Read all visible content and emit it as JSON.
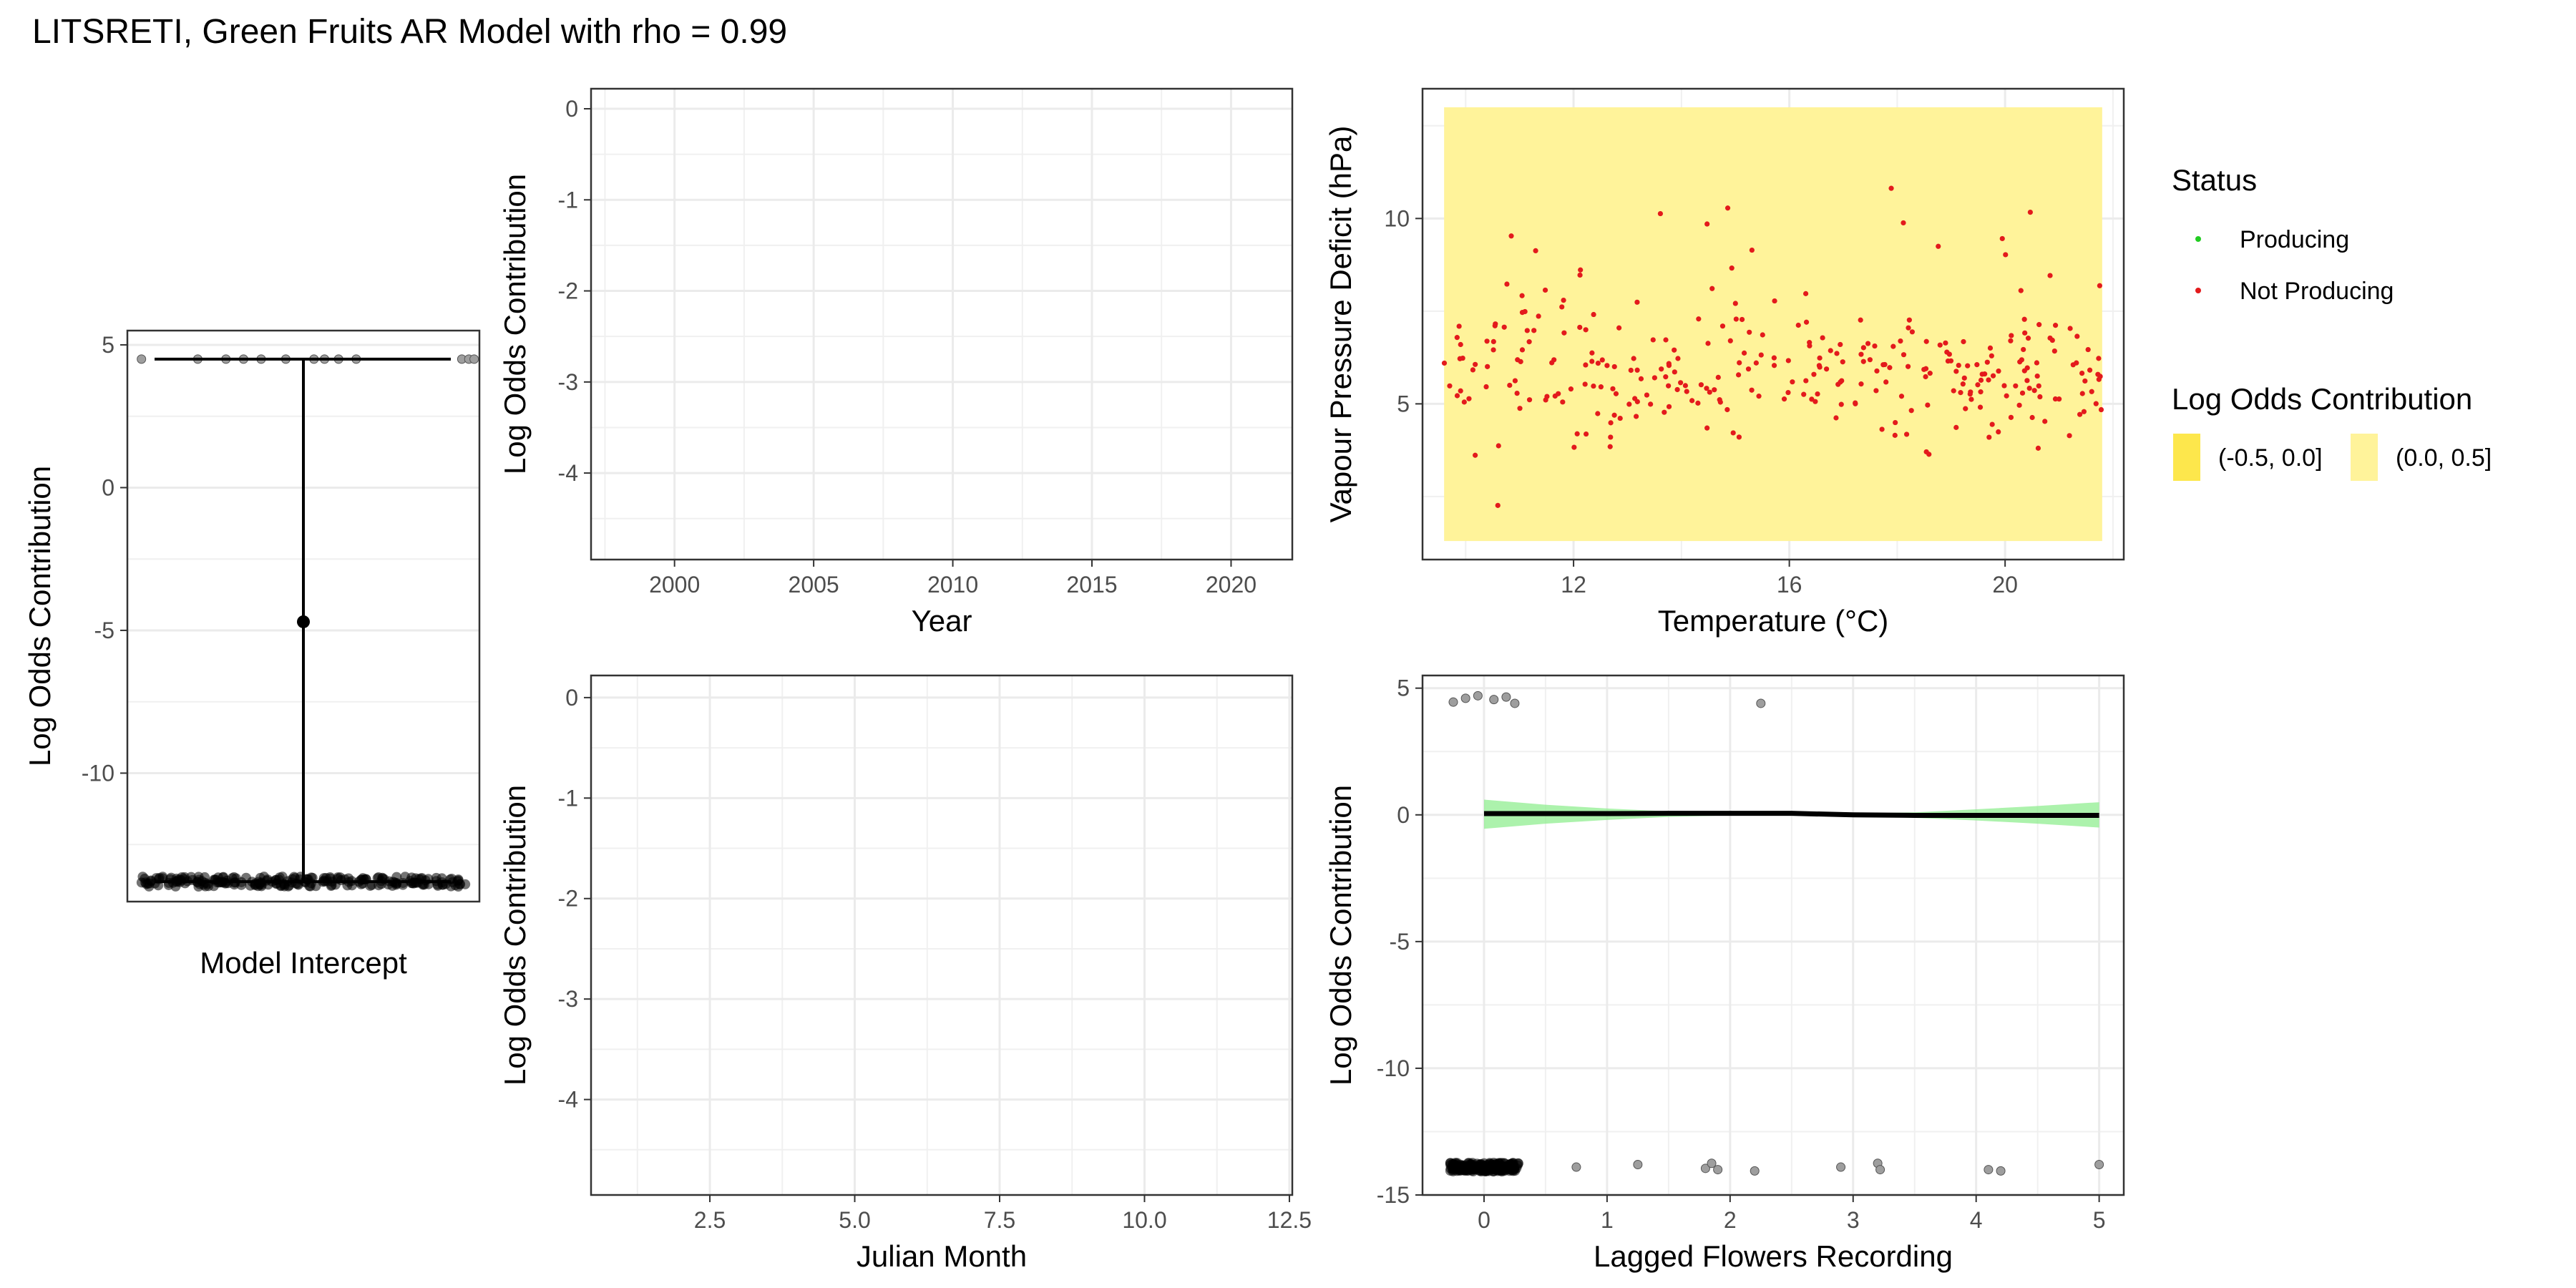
{
  "title": "LITSRETI, Green Fruits AR Model with rho = 0.99",
  "colors": {
    "producing": "#22cc22",
    "not_producing": "#e31a1c",
    "band_neg": "#fde74c",
    "band_pos": "#fff39a",
    "ribbon": "#90ee90",
    "points": "#808080"
  },
  "chart_data": [
    {
      "id": "intercept",
      "type": "scatter",
      "xlabel": "Model Intercept",
      "ylabel": "Log Odds Contribution",
      "ylim": [
        -14.5,
        5.5
      ],
      "yticks": [
        5,
        0,
        -5,
        -10
      ],
      "estimate": -4.7,
      "interval": [
        -13.8,
        4.5
      ],
      "upper_cluster": 4.5,
      "lower_cluster": -13.8
    },
    {
      "id": "year",
      "type": "line",
      "xlabel": "Year",
      "ylabel": "Log Odds Contribution",
      "xlim": [
        1997,
        2022.2
      ],
      "ylim": [
        -4.95,
        0.22
      ],
      "xticks": [
        2000,
        2005,
        2010,
        2015,
        2020
      ],
      "yticks": [
        0,
        -1,
        -2,
        -3,
        -4
      ]
    },
    {
      "id": "temp_vpd",
      "type": "scatter",
      "xlabel": "Temperature (°C)",
      "ylabel": "Vapour Pressure Deficit (hPa)",
      "xlim": [
        9.2,
        22.2
      ],
      "ylim": [
        0.8,
        13.5
      ],
      "xticks": [
        12,
        16,
        20
      ],
      "yticks": [
        5,
        10
      ],
      "band": {
        "x": [
          9.6,
          21.8
        ],
        "y": [
          1.3,
          13.0
        ]
      },
      "points_status": "Not Producing",
      "x_range": [
        9.6,
        21.8
      ],
      "y_range": [
        1.2,
        13.0
      ],
      "n_points": 310
    },
    {
      "id": "month",
      "type": "line",
      "xlabel": "Julian Month",
      "ylabel": "Log Odds Contribution",
      "xlim": [
        0.45,
        12.55
      ],
      "ylim": [
        -4.95,
        0.22
      ],
      "xticks": [
        2.5,
        5.0,
        7.5,
        10.0,
        12.5
      ],
      "xtick_labels": [
        "2.5",
        "5.0",
        "7.5",
        "10.0",
        "12.5"
      ],
      "yticks": [
        0,
        -1,
        -2,
        -3,
        -4
      ]
    },
    {
      "id": "lagged_flowers",
      "type": "line",
      "xlabel": "Lagged Flowers Recording",
      "ylabel": "Log Odds Contribution",
      "xlim": [
        -0.5,
        5.2
      ],
      "ylim": [
        -15,
        5.5
      ],
      "xticks": [
        0,
        1,
        2,
        3,
        4,
        5
      ],
      "yticks": [
        5,
        0,
        -5,
        -10,
        -15
      ],
      "line": {
        "x": [
          0,
          0.5,
          1,
          1.5,
          2,
          2.5,
          3,
          3.5,
          4,
          4.5,
          5
        ],
        "y": [
          0.05,
          0.05,
          0.05,
          0.06,
          0.06,
          0.06,
          0,
          -0.02,
          -0.02,
          -0.02,
          -0.02
        ]
      },
      "ribbon": {
        "x": [
          0,
          0.5,
          1,
          1.5,
          2,
          2.5,
          3,
          3.5,
          4,
          4.5,
          5
        ],
        "lower": [
          -0.55,
          -0.35,
          -0.2,
          -0.08,
          -0.02,
          0.02,
          -0.05,
          -0.12,
          -0.22,
          -0.35,
          -0.5
        ],
        "upper": [
          0.6,
          0.4,
          0.25,
          0.14,
          0.1,
          0.08,
          0.05,
          0.1,
          0.22,
          0.35,
          0.5
        ]
      },
      "scatter": [
        {
          "x": -0.15,
          "y": 4.6
        },
        {
          "x": -0.05,
          "y": 4.7
        },
        {
          "x": 0.08,
          "y": 4.55
        },
        {
          "x": 0.18,
          "y": 4.65
        },
        {
          "x": 0.25,
          "y": 4.4
        },
        {
          "x": -0.25,
          "y": 4.45
        },
        {
          "x": 2.25,
          "y": 4.4
        },
        {
          "x": 0.75,
          "y": -13.9
        },
        {
          "x": 1.25,
          "y": -13.8
        },
        {
          "x": 1.8,
          "y": -13.95
        },
        {
          "x": 1.85,
          "y": -13.75
        },
        {
          "x": 1.9,
          "y": -14.0
        },
        {
          "x": 2.2,
          "y": -14.05
        },
        {
          "x": 2.9,
          "y": -13.9
        },
        {
          "x": 3.2,
          "y": -13.75
        },
        {
          "x": 3.22,
          "y": -14.0
        },
        {
          "x": 4.1,
          "y": -14.0
        },
        {
          "x": 4.2,
          "y": -14.05
        },
        {
          "x": 5.0,
          "y": -13.8
        }
      ]
    }
  ],
  "legend": {
    "status_title": "Status",
    "status_items": [
      {
        "label": "Producing",
        "color": "#22cc22"
      },
      {
        "label": "Not Producing",
        "color": "#e31a1c"
      }
    ],
    "lo_title": "Log Odds Contribution",
    "lo_items": [
      {
        "label": "(-0.5, 0.0]",
        "color": "#fde74c"
      },
      {
        "label": "(0.0, 0.5]",
        "color": "#fff39a"
      }
    ]
  }
}
